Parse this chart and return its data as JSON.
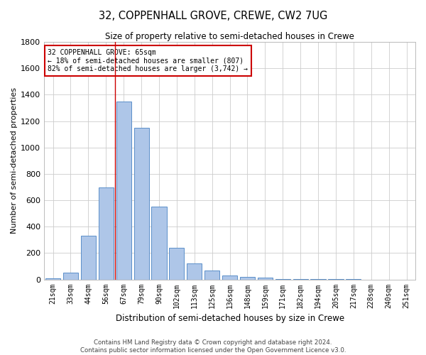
{
  "title": "32, COPPENHALL GROVE, CREWE, CW2 7UG",
  "subtitle": "Size of property relative to semi-detached houses in Crewe",
  "xlabel": "Distribution of semi-detached houses by size in Crewe",
  "ylabel": "Number of semi-detached properties",
  "footnote1": "Contains HM Land Registry data © Crown copyright and database right 2024.",
  "footnote2": "Contains public sector information licensed under the Open Government Licence v3.0.",
  "categories": [
    "21sqm",
    "33sqm",
    "44sqm",
    "56sqm",
    "67sqm",
    "79sqm",
    "90sqm",
    "102sqm",
    "113sqm",
    "125sqm",
    "136sqm",
    "148sqm",
    "159sqm",
    "171sqm",
    "182sqm",
    "194sqm",
    "205sqm",
    "217sqm",
    "228sqm",
    "240sqm",
    "251sqm"
  ],
  "values": [
    10,
    50,
    330,
    700,
    1350,
    1150,
    550,
    240,
    120,
    65,
    30,
    20,
    15,
    5,
    3,
    2,
    1,
    1,
    0,
    0,
    0
  ],
  "bar_color": "#aec6e8",
  "bar_edge_color": "#5b8fc9",
  "grid_color": "#cccccc",
  "bg_color": "#ffffff",
  "property_label": "32 COPPENHALL GROVE: 65sqm",
  "annotation_line1": "← 18% of semi-detached houses are smaller (807)",
  "annotation_line2": "82% of semi-detached houses are larger (3,742) →",
  "annotation_box_color": "#cc0000",
  "vline_color": "#cc0000",
  "vline_x_index": 4,
  "ylim": [
    0,
    1800
  ],
  "yticks": [
    0,
    200,
    400,
    600,
    800,
    1000,
    1200,
    1400,
    1600,
    1800
  ]
}
